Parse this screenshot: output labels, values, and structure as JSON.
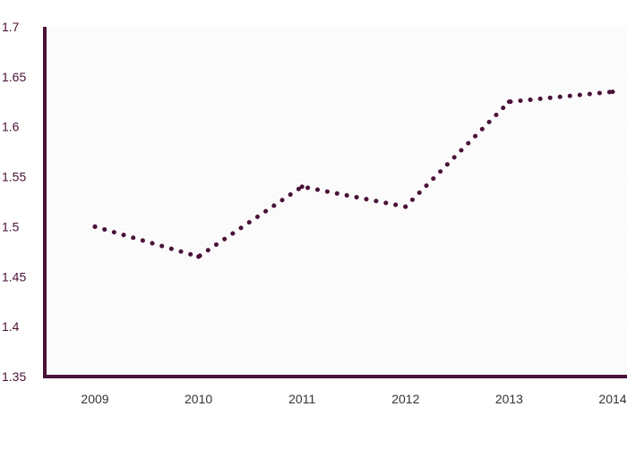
{
  "chart_data": {
    "type": "line",
    "title": "",
    "xlabel": "",
    "ylabel": "",
    "x": [
      "2009",
      "2010",
      "2011",
      "2012",
      "2013",
      "2014"
    ],
    "series": [
      {
        "values": [
          1.5,
          1.47,
          1.54,
          1.52,
          1.625,
          1.635
        ],
        "line_style": "dotted",
        "color": "#4a1238"
      }
    ],
    "ylim": [
      1.35,
      1.7
    ],
    "yticks": [
      "1.35",
      "1.4",
      "1.45",
      "1.5",
      "1.55",
      "1.6",
      "1.65",
      "1.7"
    ],
    "grid": true,
    "legend": "none",
    "colors": {
      "axis": "#4a1238",
      "tick_label": "#4a1238",
      "x_label": "#333333",
      "plot_background": "#fcfbfc",
      "gridline": "#ffffff"
    }
  }
}
